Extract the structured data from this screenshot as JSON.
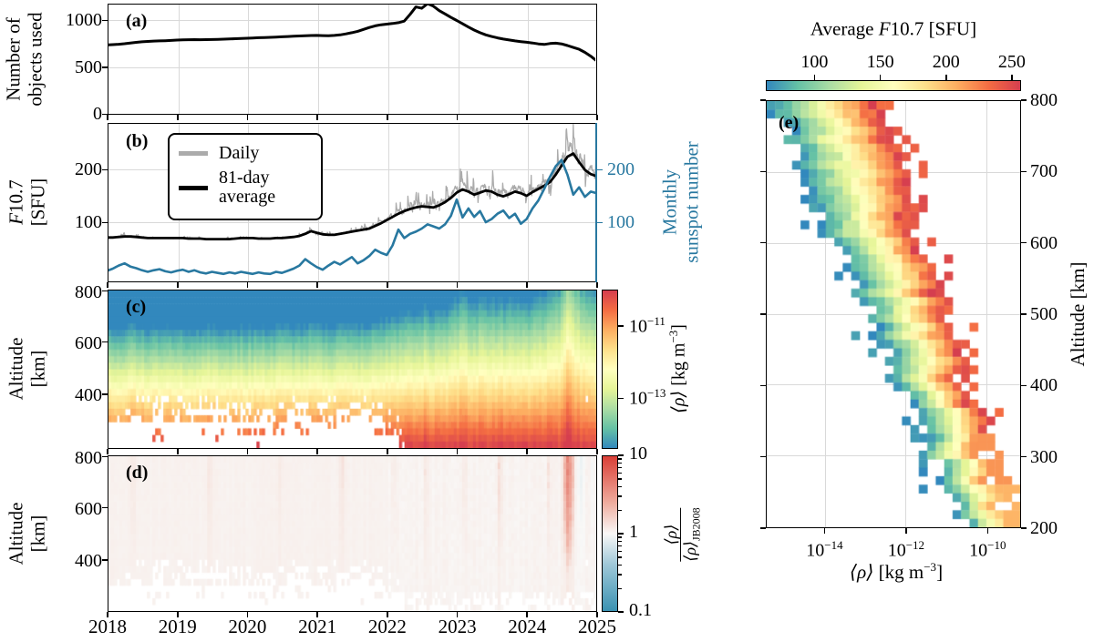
{
  "figure_title": "Thermospheric density and solar activity multi-panel figure",
  "colors": {
    "line_black": "#000000",
    "line_gray": "#ababab",
    "sunspot_blue": "#2878a0",
    "grid_gray": "#d9d9d9",
    "spectral_stops": [
      "#3288bd",
      "#66c2a5",
      "#abdda4",
      "#e6f598",
      "#ffffbf",
      "#fee08b",
      "#fdae61",
      "#f46d43",
      "#d53e4f"
    ],
    "ratio_stops": [
      "#3a92b2",
      "#9fc8d8",
      "#f9f8f7",
      "#efac9e",
      "#d93f37"
    ]
  },
  "x_axis": {
    "ticks": [
      "2018",
      "2019",
      "2020",
      "2021",
      "2022",
      "2023",
      "2024",
      "2025"
    ]
  },
  "panels": {
    "a": {
      "label": "(a)",
      "ylabel1": "Number of",
      "ylabel2": "objects used",
      "yticks": [
        {
          "v": 0,
          "label": "0"
        },
        {
          "v": 500,
          "label": "500"
        },
        {
          "v": 1000,
          "label": "1000"
        }
      ]
    },
    "b": {
      "label": "(b)",
      "ylabel1_f": "F",
      "ylabel1_rest": "10.7",
      "ylabel2": "[SFU]",
      "yticks": [
        {
          "v": 100,
          "label": "100"
        },
        {
          "v": 200,
          "label": "200"
        }
      ],
      "legend": {
        "daily": "Daily",
        "avg1": "81-day",
        "avg2": "average"
      },
      "right_axis": {
        "label1": "Monthly",
        "label2": "sunspot number",
        "yticks": [
          {
            "v": 100,
            "label": "100"
          },
          {
            "v": 200,
            "label": "200"
          }
        ]
      }
    },
    "c": {
      "label": "(c)",
      "ylabel1": "Altitude",
      "ylabel2": "[km]",
      "yticks": [
        {
          "v": 400,
          "label": "400"
        },
        {
          "v": 600,
          "label": "600"
        },
        {
          "v": 800,
          "label": "800"
        }
      ],
      "cbar": {
        "ticks": [
          {
            "v": -11,
            "base": "10",
            "exp": "−11"
          },
          {
            "v": -13,
            "base": "10",
            "exp": "−13"
          }
        ],
        "label_sym": "⟨ρ⟩",
        "label_unit_pre": " [kg m",
        "label_unit_sup": "−3",
        "label_unit_post": "]"
      }
    },
    "d": {
      "label": "(d)",
      "ylabel1": "Altitude",
      "ylabel2": "[km]",
      "yticks": [
        {
          "v": 400,
          "label": "400"
        },
        {
          "v": 600,
          "label": "600"
        },
        {
          "v": 800,
          "label": "800"
        }
      ],
      "cbar": {
        "ticks": [
          {
            "v": 10,
            "label": "10"
          },
          {
            "v": 1,
            "label": "1"
          },
          {
            "v": 0.1,
            "label": "0.1"
          }
        ],
        "frac_num": "⟨ρ⟩",
        "frac_den": "⟨ρ⟩",
        "frac_den_sub": "JB2008"
      }
    },
    "e": {
      "label": "(e)",
      "cbar_title_pre": "Average ",
      "cbar_title_f": "F",
      "cbar_title_post": "10.7 [SFU]",
      "cbar_ticks": [
        {
          "v": 100,
          "label": "100"
        },
        {
          "v": 150,
          "label": "150"
        },
        {
          "v": 200,
          "label": "200"
        },
        {
          "v": 250,
          "label": "250"
        }
      ],
      "ylabel": "Altitude [km]",
      "yticks": [
        {
          "v": 200,
          "label": "200"
        },
        {
          "v": 300,
          "label": "300"
        },
        {
          "v": 400,
          "label": "400"
        },
        {
          "v": 500,
          "label": "500"
        },
        {
          "v": 600,
          "label": "600"
        },
        {
          "v": 700,
          "label": "700"
        },
        {
          "v": 800,
          "label": "800"
        }
      ],
      "xticks": [
        {
          "v": -14,
          "base": "10",
          "exp": "−14"
        },
        {
          "v": -12,
          "base": "10",
          "exp": "−12"
        },
        {
          "v": -10,
          "base": "10",
          "exp": "−10"
        }
      ],
      "xlabel_sym": "⟨ρ⟩",
      "xlabel_unit_pre": " [kg m",
      "xlabel_unit_sup": "−3",
      "xlabel_unit_post": "]"
    }
  },
  "chart_data": [
    {
      "id": "a",
      "type": "line",
      "title": "Number of objects used",
      "x_start": 2018.0,
      "x_step_years": 0.0833333,
      "x_range": [
        2018,
        2025
      ],
      "ylim": [
        0,
        1195
      ],
      "yticks": [
        0,
        500,
        1000
      ],
      "grid": true,
      "values": [
        735,
        738,
        742,
        748,
        755,
        762,
        768,
        772,
        776,
        778,
        780,
        783,
        786,
        789,
        790,
        791,
        790,
        791,
        792,
        794,
        796,
        798,
        801,
        804,
        806,
        809,
        812,
        814,
        816,
        818,
        821,
        824,
        827,
        830,
        833,
        835,
        836,
        834,
        833,
        836,
        842,
        852,
        865,
        880,
        900,
        920,
        938,
        950,
        956,
        963,
        972,
        988,
        1060,
        1140,
        1125,
        1175,
        1148,
        1100,
        1065,
        1028,
        995,
        960,
        925,
        893,
        865,
        842,
        824,
        810,
        797,
        787,
        778,
        770,
        763,
        755,
        746,
        740,
        750,
        753,
        746,
        728,
        708,
        688,
        655,
        615,
        565
      ]
    },
    {
      "id": "b",
      "type": "line",
      "x_start": 2018.0,
      "x_step_years": 0.0833333,
      "x_range": [
        2018,
        2025
      ],
      "ylim_left_f107_sfu": [
        -12,
        290
      ],
      "yticks_left": [
        100,
        200
      ],
      "ylim_right_sunspot": [
        -12,
        290
      ],
      "yticks_right": [
        100,
        200
      ],
      "grid": true,
      "legend_position": "upper left",
      "series": [
        {
          "name": "81-day average",
          "color": "#000000",
          "values": [
            71,
            71,
            72,
            73,
            73,
            72,
            71,
            70,
            70,
            70,
            70,
            70,
            70,
            70,
            69,
            69,
            69,
            68,
            68,
            68,
            68,
            68,
            69,
            70,
            70,
            70,
            69,
            69,
            69,
            70,
            70,
            71,
            72,
            74,
            78,
            83,
            80,
            77,
            76,
            76,
            78,
            80,
            82,
            84,
            86,
            88,
            93,
            98,
            104,
            110,
            116,
            121,
            125,
            128,
            130,
            129,
            128,
            132,
            138,
            146,
            156,
            162,
            158,
            152,
            156,
            160,
            158,
            152,
            149,
            153,
            158,
            155,
            150,
            157,
            163,
            169,
            176,
            190,
            207,
            224,
            230,
            214,
            199,
            191,
            187
          ]
        },
        {
          "name": "Monthly sunspot number",
          "color": "#2878a0",
          "axis": "right",
          "values": [
            8,
            12,
            18,
            22,
            16,
            13,
            9,
            6,
            9,
            11,
            7,
            5,
            8,
            10,
            6,
            9,
            5,
            3,
            6,
            4,
            2,
            5,
            3,
            6,
            4,
            2,
            5,
            3,
            2,
            6,
            4,
            8,
            12,
            18,
            30,
            22,
            15,
            10,
            18,
            25,
            20,
            27,
            34,
            22,
            28,
            36,
            48,
            42,
            38,
            56,
            86,
            70,
            78,
            82,
            88,
            96,
            92,
            88,
            96,
            112,
            143,
            109,
            126,
            110,
            121,
            100,
            106,
            116,
            122,
            108,
            116,
            97,
            106,
            126,
            141,
            163,
            186,
            206,
            218,
            190,
            152,
            166,
            148,
            158,
            155
          ]
        },
        {
          "name": "Daily",
          "color": "#ababab",
          "note": "daily F10.7, noisy envelope around the 81-day average; rendered procedurally with seeded noise"
        }
      ]
    },
    {
      "id": "c",
      "type": "heatmap",
      "quantity": "mean density vs altitude and time",
      "x_range": [
        2018,
        2025
      ],
      "alt_range_km": [
        195,
        800
      ],
      "colorbar_log10_range": [
        -14.4,
        -10.0
      ],
      "colorbar_ticks_log10": [
        -11,
        -13
      ],
      "model": {
        "log10_rho_at_200km": -10.08,
        "decades_per_100km_solar_min": -0.95,
        "decades_per_100km_solar_max": -0.605,
        "f107_min": 68,
        "f107_max": 233,
        "sparse_below_km": 398,
        "sparse_before_year": 2022.3
      }
    },
    {
      "id": "d",
      "type": "heatmap",
      "quantity": "density ratio to JB2008 vs altitude and time",
      "x_range": [
        2018,
        2025
      ],
      "alt_range_km": [
        200,
        800
      ],
      "colorbar_range": [
        0.1,
        10
      ],
      "colorbar_scale": "log",
      "typical_ratio": 0.9,
      "events": [
        {
          "t": 2018.35,
          "ratio": 1.4,
          "width": 0.035
        },
        {
          "t": 2019.45,
          "ratio": 1.45,
          "width": 0.03
        },
        {
          "t": 2020.45,
          "ratio": 1.3,
          "width": 0.03
        },
        {
          "t": 2021.35,
          "ratio": 1.5,
          "width": 0.03
        },
        {
          "t": 2022.1,
          "ratio": 1.4,
          "width": 0.025
        },
        {
          "t": 2022.55,
          "ratio": 1.5,
          "width": 0.025
        },
        {
          "t": 2023.1,
          "ratio": 1.5,
          "width": 0.03
        },
        {
          "t": 2023.62,
          "ratio": 1.7,
          "width": 0.03
        },
        {
          "t": 2024.32,
          "ratio": 1.6,
          "width": 0.02
        },
        {
          "t": 2024.6,
          "ratio": 4.5,
          "width": 0.045
        },
        {
          "t": 2024.78,
          "ratio": 0.55,
          "width": 0.03
        },
        {
          "t": 2024.95,
          "ratio": 0.7,
          "width": 0.02
        }
      ]
    },
    {
      "id": "e",
      "type": "heatmap",
      "quantity": "2D histogram of density vs altitude colored by average F10.7",
      "x_log10_range": [
        -15.44,
        -9.18
      ],
      "xticks_log10": [
        -14,
        -12,
        -10
      ],
      "alt_range_km": [
        200,
        800
      ],
      "yticks_km": [
        200,
        300,
        400,
        500,
        600,
        700,
        800
      ],
      "color_range_f107_sfu": [
        63,
        257
      ],
      "colorbar_ticks": [
        100,
        150,
        200,
        250
      ],
      "band": {
        "left_log10_at_200km": -10.6,
        "left_log10_at_800km": -15.4,
        "right_log10_at_200km": -9.3,
        "right_log10_at_800km": -12.7
      },
      "grid": true
    }
  ]
}
